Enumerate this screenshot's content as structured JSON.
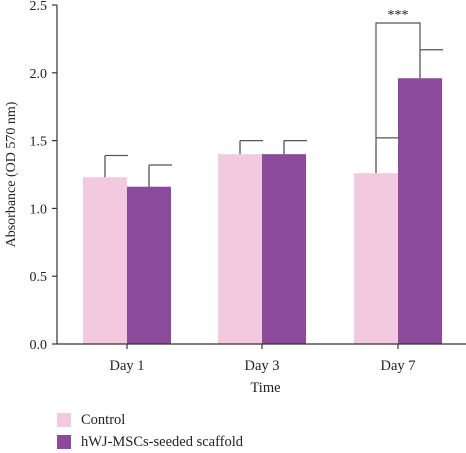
{
  "chart_data": {
    "type": "bar",
    "title": "",
    "xlabel": "Time",
    "ylabel": "Absorbance (OD 570 nm)",
    "categories": [
      "Day 1",
      "Day 3",
      "Day 7"
    ],
    "ylim": [
      0,
      2.5
    ],
    "yticks": [
      0.0,
      0.5,
      1.0,
      1.5,
      2.0,
      2.5
    ],
    "ytick_labels": [
      "0.0",
      "0.5",
      "1.0",
      "1.5",
      "2.0",
      "2.5"
    ],
    "grid": false,
    "legend_position": "bottom-left",
    "series": [
      {
        "name": "Control",
        "color": "#f2c9de",
        "values": [
          1.23,
          1.4,
          1.26
        ],
        "errors": [
          0.16,
          0.1,
          0.26
        ]
      },
      {
        "name": "hWJ-MSCs-seeded scaffold",
        "color": "#8b4a9c",
        "values": [
          1.16,
          1.4,
          1.96
        ],
        "errors": [
          0.16,
          0.1,
          0.21
        ]
      }
    ],
    "annotations": [
      {
        "text": "***",
        "category": "Day 7",
        "between_series": [
          "Control",
          "hWJ-MSCs-seeded scaffold"
        ]
      }
    ]
  }
}
